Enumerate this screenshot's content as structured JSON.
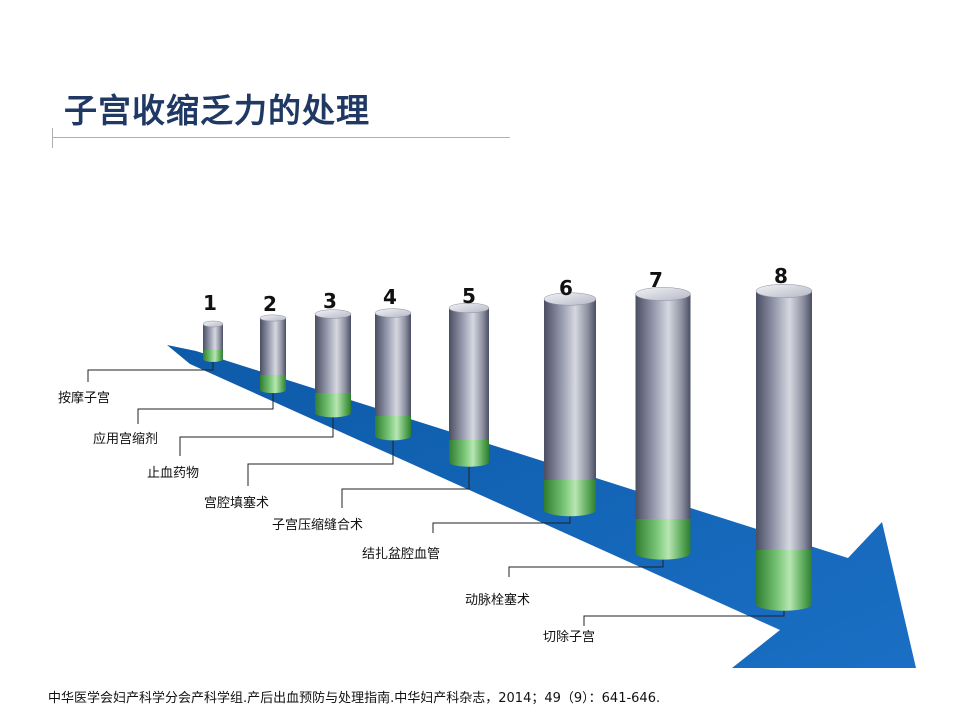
{
  "title": "子宫收缩乏力的处理",
  "steps": [
    {
      "number": "1",
      "label": "按摩子宫"
    },
    {
      "number": "2",
      "label": "应用宫缩剂"
    },
    {
      "number": "3",
      "label": "止血药物"
    },
    {
      "number": "4",
      "label": "宫腔填塞术"
    },
    {
      "number": "5",
      "label": "子宫压缩缝合术"
    },
    {
      "number": "6",
      "label": "结扎盆腔血管"
    },
    {
      "number": "7",
      "label": "动脉栓塞术"
    },
    {
      "number": "8",
      "label": "切除子宫"
    }
  ],
  "colors": {
    "title": "#1f3864",
    "arrow": "#1464b4",
    "cylinder_dark": "#4a4e62",
    "cylinder_light": "#d6d8e0",
    "band_green": "#4aa84a"
  },
  "reference": "中华医学会妇产科学分会产科学组.产后出血预防与处理指南.中华妇产科杂志，2014；49（9）：641-646."
}
